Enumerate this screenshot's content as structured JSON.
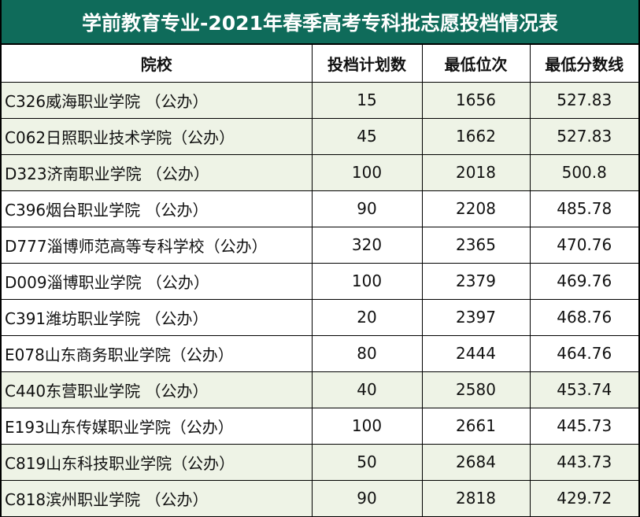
{
  "title": "学前教育专业-2021年春季高考专科批志愿投档情况表",
  "colors": {
    "title_bg": "#0f6b5a",
    "title_text": "#ffffff",
    "row_green": "#eef3e6",
    "row_white": "#ffffff",
    "border": "#000000"
  },
  "table": {
    "headers": [
      "院校",
      "投档计划数",
      "最低位次",
      "最低分数线"
    ],
    "rows": [
      {
        "school": "C326威海职业学院 （公办）",
        "plan": "15",
        "min_rank": "1656",
        "min_score": "527.83",
        "shade": "green"
      },
      {
        "school": "C062日照职业技术学院（公办）",
        "plan": "45",
        "min_rank": "1662",
        "min_score": "527.83",
        "shade": "green"
      },
      {
        "school": "D323济南职业学院 （公办）",
        "plan": "100",
        "min_rank": "2018",
        "min_score": "500.8",
        "shade": "green"
      },
      {
        "school": "C396烟台职业学院 （公办）",
        "plan": "90",
        "min_rank": "2208",
        "min_score": "485.78",
        "shade": "white"
      },
      {
        "school": "D777淄博师范高等专科学校（公办）",
        "plan": "320",
        "min_rank": "2365",
        "min_score": "470.76",
        "shade": "white"
      },
      {
        "school": "D009淄博职业学院 （公办）",
        "plan": "100",
        "min_rank": "2379",
        "min_score": "469.76",
        "shade": "white"
      },
      {
        "school": "C391潍坊职业学院 （公办）",
        "plan": "20",
        "min_rank": "2397",
        "min_score": "468.76",
        "shade": "white"
      },
      {
        "school": "E078山东商务职业学院（公办）",
        "plan": "80",
        "min_rank": "2444",
        "min_score": "464.76",
        "shade": "white"
      },
      {
        "school": "C440东营职业学院 （公办）",
        "plan": "40",
        "min_rank": "2580",
        "min_score": "453.74",
        "shade": "green"
      },
      {
        "school": "E193山东传媒职业学院（公办）",
        "plan": "100",
        "min_rank": "2661",
        "min_score": "445.73",
        "shade": "white"
      },
      {
        "school": "C819山东科技职业学院（公办）",
        "plan": "50",
        "min_rank": "2684",
        "min_score": "443.73",
        "shade": "green"
      },
      {
        "school": "C818滨州职业学院 （公办）",
        "plan": "90",
        "min_rank": "2818",
        "min_score": "429.72",
        "shade": "green"
      }
    ]
  }
}
